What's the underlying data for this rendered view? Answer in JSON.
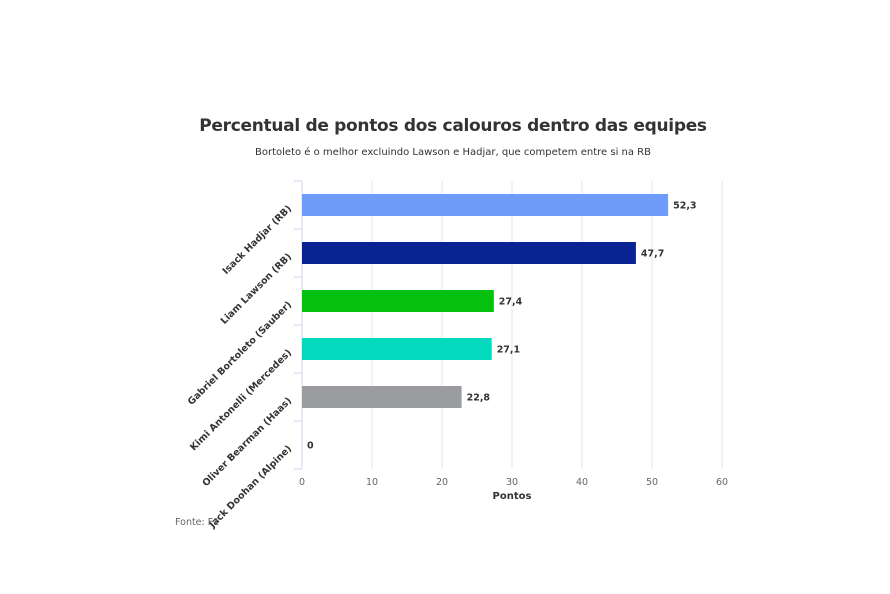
{
  "chart_data": {
    "type": "bar",
    "orientation": "horizontal",
    "title": "Percentual de pontos dos calouros dentro das equipes",
    "subtitle": "Bortoleto é o melhor excluindo Lawson e Hadjar, que competem entre si na RB",
    "categories": [
      "Isack Hadjar (RB)",
      "Liam Lawson (RB)",
      "Gabriel Bortoleto (Sauber)",
      "Kimi Antonelli (Mercedes)",
      "Oliver Bearman (Haas)",
      "Jack Doohan (Alpine)"
    ],
    "values": [
      52.3,
      47.7,
      27.4,
      27.1,
      22.8,
      0
    ],
    "value_labels": [
      "52,3",
      "47,7",
      "27,4",
      "27,1",
      "22,8",
      "0"
    ],
    "colors": [
      "#6f9bfb",
      "#0a2392",
      "#05c00f",
      "#04d9be",
      "#9a9c9f",
      "#ffffff"
    ],
    "xlabel": "Pontos",
    "ylabel": "",
    "xlim": [
      0,
      60
    ],
    "xticks": [
      0,
      10,
      20,
      30,
      40,
      50,
      60
    ],
    "xtick_labels": [
      "0",
      "10",
      "20",
      "30",
      "40",
      "50",
      "60"
    ],
    "grid": "vertical",
    "legend": "none",
    "source": "Fonte: F1"
  }
}
